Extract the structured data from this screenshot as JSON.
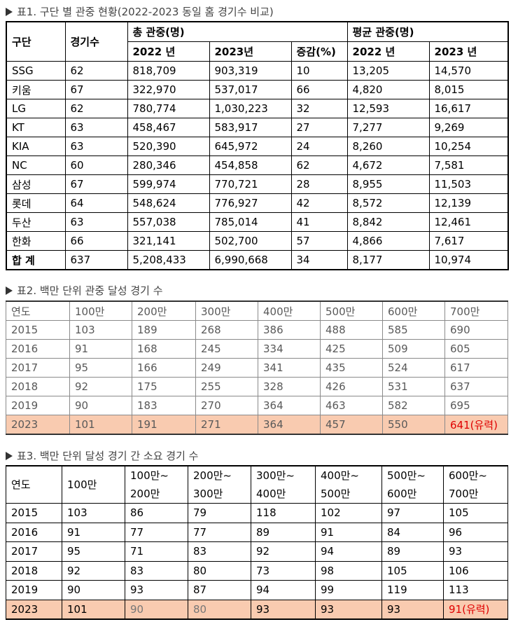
{
  "table1": {
    "title": "표1. 구단 별 관중 현황(2022-2023 동일 홈 경기수 비교)",
    "header": {
      "team": "구단",
      "games": "경기수",
      "total": "총 관중(명)",
      "average": "평균 관중(명)",
      "sub": [
        "2022 년",
        "2023년",
        "증감(%)",
        "2022 년",
        "2023 년"
      ]
    },
    "rows": [
      [
        "SSG",
        "62",
        "818,709",
        "903,319",
        "10",
        "13,205",
        "14,570"
      ],
      [
        "키움",
        "67",
        "322,970",
        "537,017",
        "66",
        "4,820",
        "8,015"
      ],
      [
        "LG",
        "62",
        "780,774",
        "1,030,223",
        "32",
        "12,593",
        "16,617"
      ],
      [
        "KT",
        "63",
        "458,467",
        "583,917",
        "27",
        "7,277",
        "9,269"
      ],
      [
        "KIA",
        "63",
        "520,390",
        "645,972",
        "24",
        "8,260",
        "10,254"
      ],
      [
        "NC",
        "60",
        "280,346",
        "454,858",
        "62",
        "4,672",
        "7,581"
      ],
      [
        "삼성",
        "67",
        "599,974",
        "770,721",
        "28",
        "8,955",
        "11,503"
      ],
      [
        "롯데",
        "64",
        "548,624",
        "776,927",
        "42",
        "8,572",
        "12,139"
      ],
      [
        "두산",
        "63",
        "557,038",
        "785,014",
        "41",
        "8,842",
        "12,461"
      ],
      [
        "한화",
        "66",
        "321,141",
        "502,700",
        "57",
        "4,866",
        "7,617"
      ],
      [
        "합 계",
        "637",
        "5,208,433",
        "6,990,668",
        "34",
        "8,177",
        "10,974"
      ]
    ]
  },
  "table2": {
    "title": "표2. 백만 단위 관중 달성 경기 수",
    "header": [
      "연도",
      "100만",
      "200만",
      "300만",
      "400만",
      "500만",
      "600만",
      "700만"
    ],
    "rows": [
      [
        "2015",
        "103",
        "189",
        "268",
        "386",
        "488",
        "585",
        "690"
      ],
      [
        "2016",
        "91",
        "168",
        "245",
        "334",
        "425",
        "509",
        "605"
      ],
      [
        "2017",
        "95",
        "166",
        "249",
        "341",
        "435",
        "524",
        "617"
      ],
      [
        "2018",
        "92",
        "175",
        "255",
        "328",
        "426",
        "531",
        "637"
      ],
      [
        "2019",
        "90",
        "183",
        "270",
        "364",
        "463",
        "582",
        "695"
      ],
      [
        "2023",
        "101",
        "191",
        "271",
        "364",
        "457",
        "550",
        "641(유력)"
      ]
    ]
  },
  "table3": {
    "title": "표3. 백만 단위 달성 경기 간 소요 경기 수",
    "header": [
      "연도",
      "100만",
      "100만~\n200만",
      "200만~\n300만",
      "300만~\n400만",
      "400만~\n500만",
      "500만~\n600만",
      "600만~\n700만"
    ],
    "rows": [
      [
        "2015",
        "103",
        "86",
        "79",
        "118",
        "102",
        "97",
        "105"
      ],
      [
        "2016",
        "91",
        "77",
        "77",
        "89",
        "91",
        "84",
        "96"
      ],
      [
        "2017",
        "95",
        "71",
        "83",
        "92",
        "94",
        "89",
        "93"
      ],
      [
        "2018",
        "92",
        "83",
        "80",
        "73",
        "98",
        "105",
        "106"
      ],
      [
        "2019",
        "90",
        "93",
        "87",
        "94",
        "99",
        "119",
        "113"
      ],
      [
        "2023",
        "101",
        "90",
        "80",
        "93",
        "93",
        "93",
        "91(유력)"
      ]
    ]
  }
}
